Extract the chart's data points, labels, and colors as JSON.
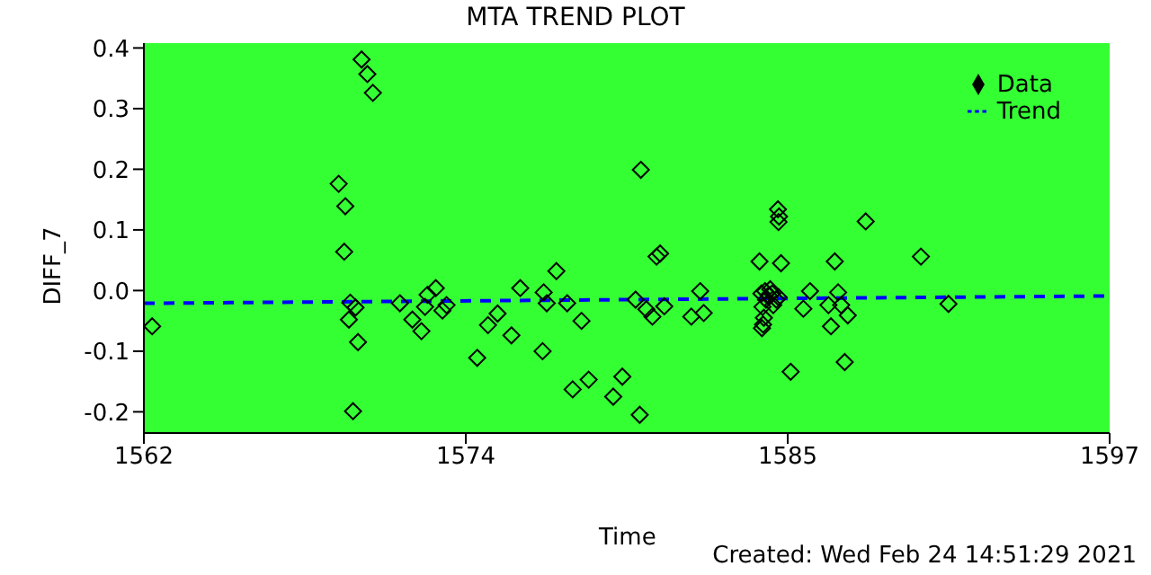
{
  "chart_data": {
    "type": "scatter",
    "title": "MTA TREND PLOT",
    "xlabel": "Time",
    "ylabel": "DIFF_7",
    "annotations": [
      "Created: Wed Feb 24 14:51:29 2021"
    ],
    "xlim": [
      1562,
      1597
    ],
    "xticks": [
      1562,
      {
        "value": 1573.667,
        "label": "1574"
      },
      {
        "value": 1585.333,
        "label": "1585"
      },
      1597
    ],
    "ylim": [
      -0.235,
      0.408
    ],
    "yticks": [
      -0.2,
      -0.1,
      {
        "value": 0,
        "label": "0.0"
      },
      0.1,
      0.2,
      0.3,
      0.4
    ],
    "grid": false,
    "legend": "top right",
    "series": [
      {
        "name": "Data",
        "color": "#000000",
        "marker": "diamond",
        "x": [
          1562.3,
          1569.06,
          1569.3,
          1569.26,
          1569.48,
          1569.67,
          1569.43,
          1569.76,
          1569.58,
          1569.89,
          1570.1,
          1570.3,
          1571.28,
          1571.73,
          1572.06,
          1572.19,
          1572.28,
          1572.58,
          1572.82,
          1572.97,
          1574.08,
          1574.47,
          1574.82,
          1575.32,
          1575.64,
          1576.45,
          1576.49,
          1576.6,
          1576.95,
          1577.34,
          1577.54,
          1577.86,
          1578.12,
          1579.01,
          1579.34,
          1579.97,
          1580.01,
          1579.82,
          1580.21,
          1580.43,
          1580.58,
          1580.71,
          1580.86,
          1581.84,
          1582.16,
          1582.29,
          1584.31,
          1584.42,
          1584.47,
          1584.4,
          1584.44,
          1584.98,
          1585.02,
          1585.0,
          1585.09,
          1584.38,
          1584.51,
          1584.64,
          1584.77,
          1584.92,
          1584.81,
          1584.55,
          1584.7,
          1585.0,
          1585.44,
          1585.9,
          1586.14,
          1586.9,
          1586.81,
          1587.04,
          1587.16,
          1587.27,
          1587.51,
          1587.4,
          1588.16,
          1590.16,
          1591.16
        ],
        "values": [
          -0.059,
          0.176,
          0.139,
          0.064,
          -0.02,
          -0.028,
          -0.048,
          -0.085,
          -0.199,
          0.381,
          0.357,
          0.326,
          -0.021,
          -0.048,
          -0.067,
          -0.027,
          -0.007,
          0.004,
          -0.033,
          -0.024,
          -0.111,
          -0.057,
          -0.038,
          -0.074,
          0.004,
          -0.1,
          -0.003,
          -0.021,
          0.032,
          -0.021,
          -0.163,
          -0.05,
          -0.147,
          -0.175,
          -0.142,
          -0.205,
          0.199,
          -0.015,
          -0.031,
          -0.043,
          0.056,
          0.061,
          -0.026,
          -0.043,
          -0.001,
          -0.037,
          0.048,
          -0.027,
          -0.045,
          -0.062,
          -0.056,
          0.134,
          0.122,
          0.113,
          0.045,
          -0.005,
          -0.001,
          -0.008,
          -0.005,
          -0.015,
          -0.024,
          -0.015,
          0.002,
          -0.011,
          -0.134,
          -0.03,
          -0.001,
          -0.059,
          -0.024,
          0.048,
          -0.003,
          -0.024,
          -0.041,
          -0.118,
          0.114,
          0.056,
          -0.022
        ]
      },
      {
        "name": "Trend",
        "type": "line",
        "color": "#0000ff",
        "line_style": "dashed",
        "x": [
          1562,
          1597
        ],
        "values": [
          -0.021,
          -0.009
        ]
      }
    ]
  }
}
